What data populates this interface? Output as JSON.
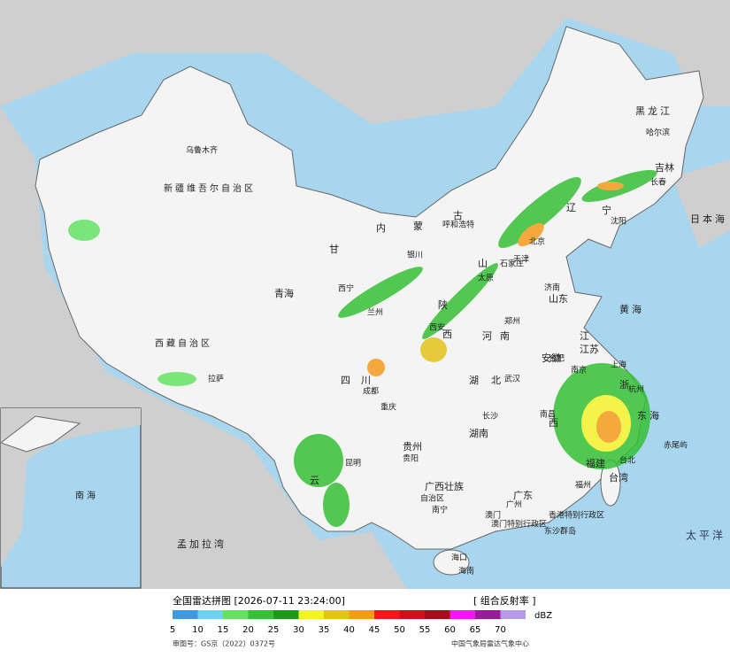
{
  "header": {
    "title": "全国雷达拼图 [2026-07-11 23:24:00]",
    "product": "[ 组合反射率 ]"
  },
  "legend": {
    "unit": "dBZ",
    "ticks": [
      5,
      10,
      15,
      20,
      25,
      30,
      35,
      40,
      45,
      50,
      55,
      60,
      65,
      70
    ],
    "colors": [
      "#3d98e6",
      "#6ad3f2",
      "#62e362",
      "#35c035",
      "#1c9a1c",
      "#f2f22a",
      "#e3c21a",
      "#f59a1c",
      "#f01a1a",
      "#c8141a",
      "#a0101a",
      "#f01af0",
      "#9a1a9a",
      "#b49ae8"
    ]
  },
  "footer": {
    "approval": "审图号：GS京（2022）0372号",
    "agency": "中国气象局雷达气象中心"
  },
  "places": [
    "乌鲁木齐",
    "新疆维吾尔自治区",
    "西藏自治区",
    "拉萨",
    "青海",
    "西宁",
    "甘",
    "兰州",
    "内",
    "蒙",
    "古",
    "呼和浩特",
    "银川",
    "陕",
    "西",
    "西安",
    "山",
    "太原",
    "石家庄",
    "北京",
    "天津",
    "济南",
    "山东",
    "河",
    "南",
    "郑州",
    "湖",
    "北",
    "武汉",
    "湖南",
    "长沙",
    "四",
    "川",
    "成都",
    "重庆",
    "贵州",
    "贵阳",
    "云",
    "昆明",
    "广西壮族",
    "自治区",
    "南宁",
    "广东",
    "广州",
    "澳门",
    "香港特别行政区",
    "澳门特别行政区",
    "东沙群岛",
    "海口",
    "海南",
    "江",
    "西",
    "南昌",
    "安徽",
    "合肥",
    "江苏",
    "南京",
    "上海",
    "浙",
    "杭州",
    "福建",
    "福州",
    "台湾",
    "台北",
    "赤尾屿",
    "黑龙江",
    "哈尔滨",
    "吉林",
    "长春",
    "辽",
    "宁",
    "沈阳",
    "日本海",
    "黄海",
    "东海",
    "太平洋",
    "孟加拉湾",
    "南海"
  ]
}
